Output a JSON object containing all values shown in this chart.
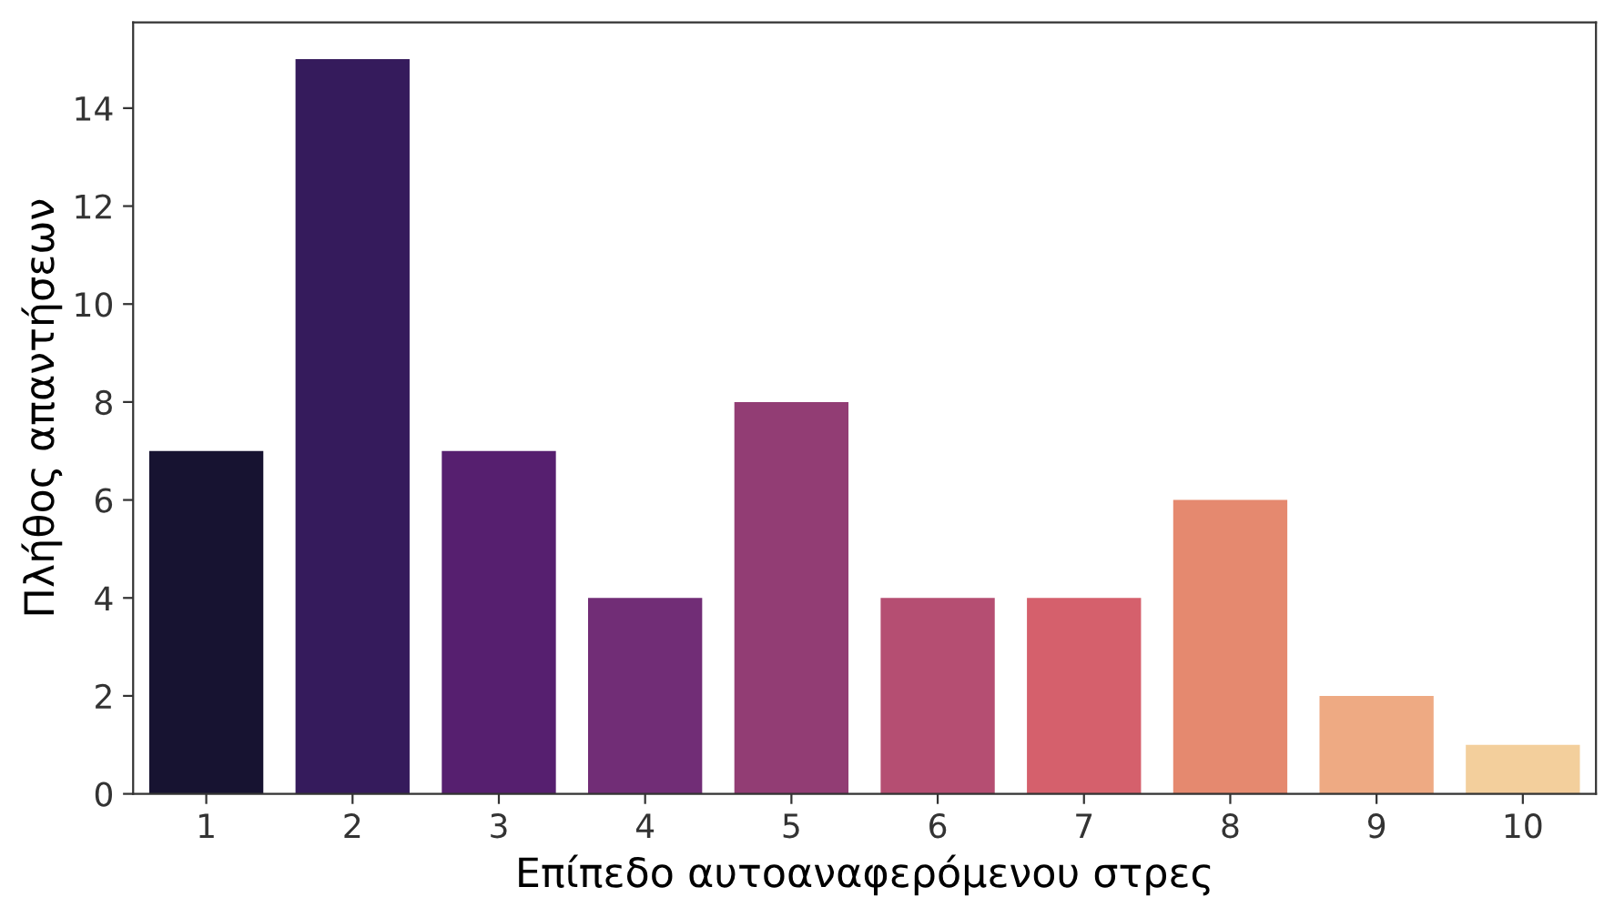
{
  "chart_data": {
    "type": "bar",
    "xlabel": "Επίπεδο αυτοαναφερόμενου στρες",
    "ylabel": "Πλήθος απαντήσεων",
    "categories": [
      "1",
      "2",
      "3",
      "4",
      "5",
      "6",
      "7",
      "8",
      "9",
      "10"
    ],
    "values": [
      7,
      15,
      7,
      4,
      8,
      4,
      4,
      6,
      2,
      1
    ],
    "colors": [
      "#171331",
      "#351b5c",
      "#561f6f",
      "#712d76",
      "#923d74",
      "#b54e72",
      "#d5606c",
      "#e5896f",
      "#eeaa83",
      "#f3cf9c"
    ],
    "ylim": [
      0,
      15.75
    ],
    "yticks": [
      0,
      2,
      4,
      6,
      8,
      10,
      12,
      14
    ],
    "grid": false,
    "legend": false
  }
}
